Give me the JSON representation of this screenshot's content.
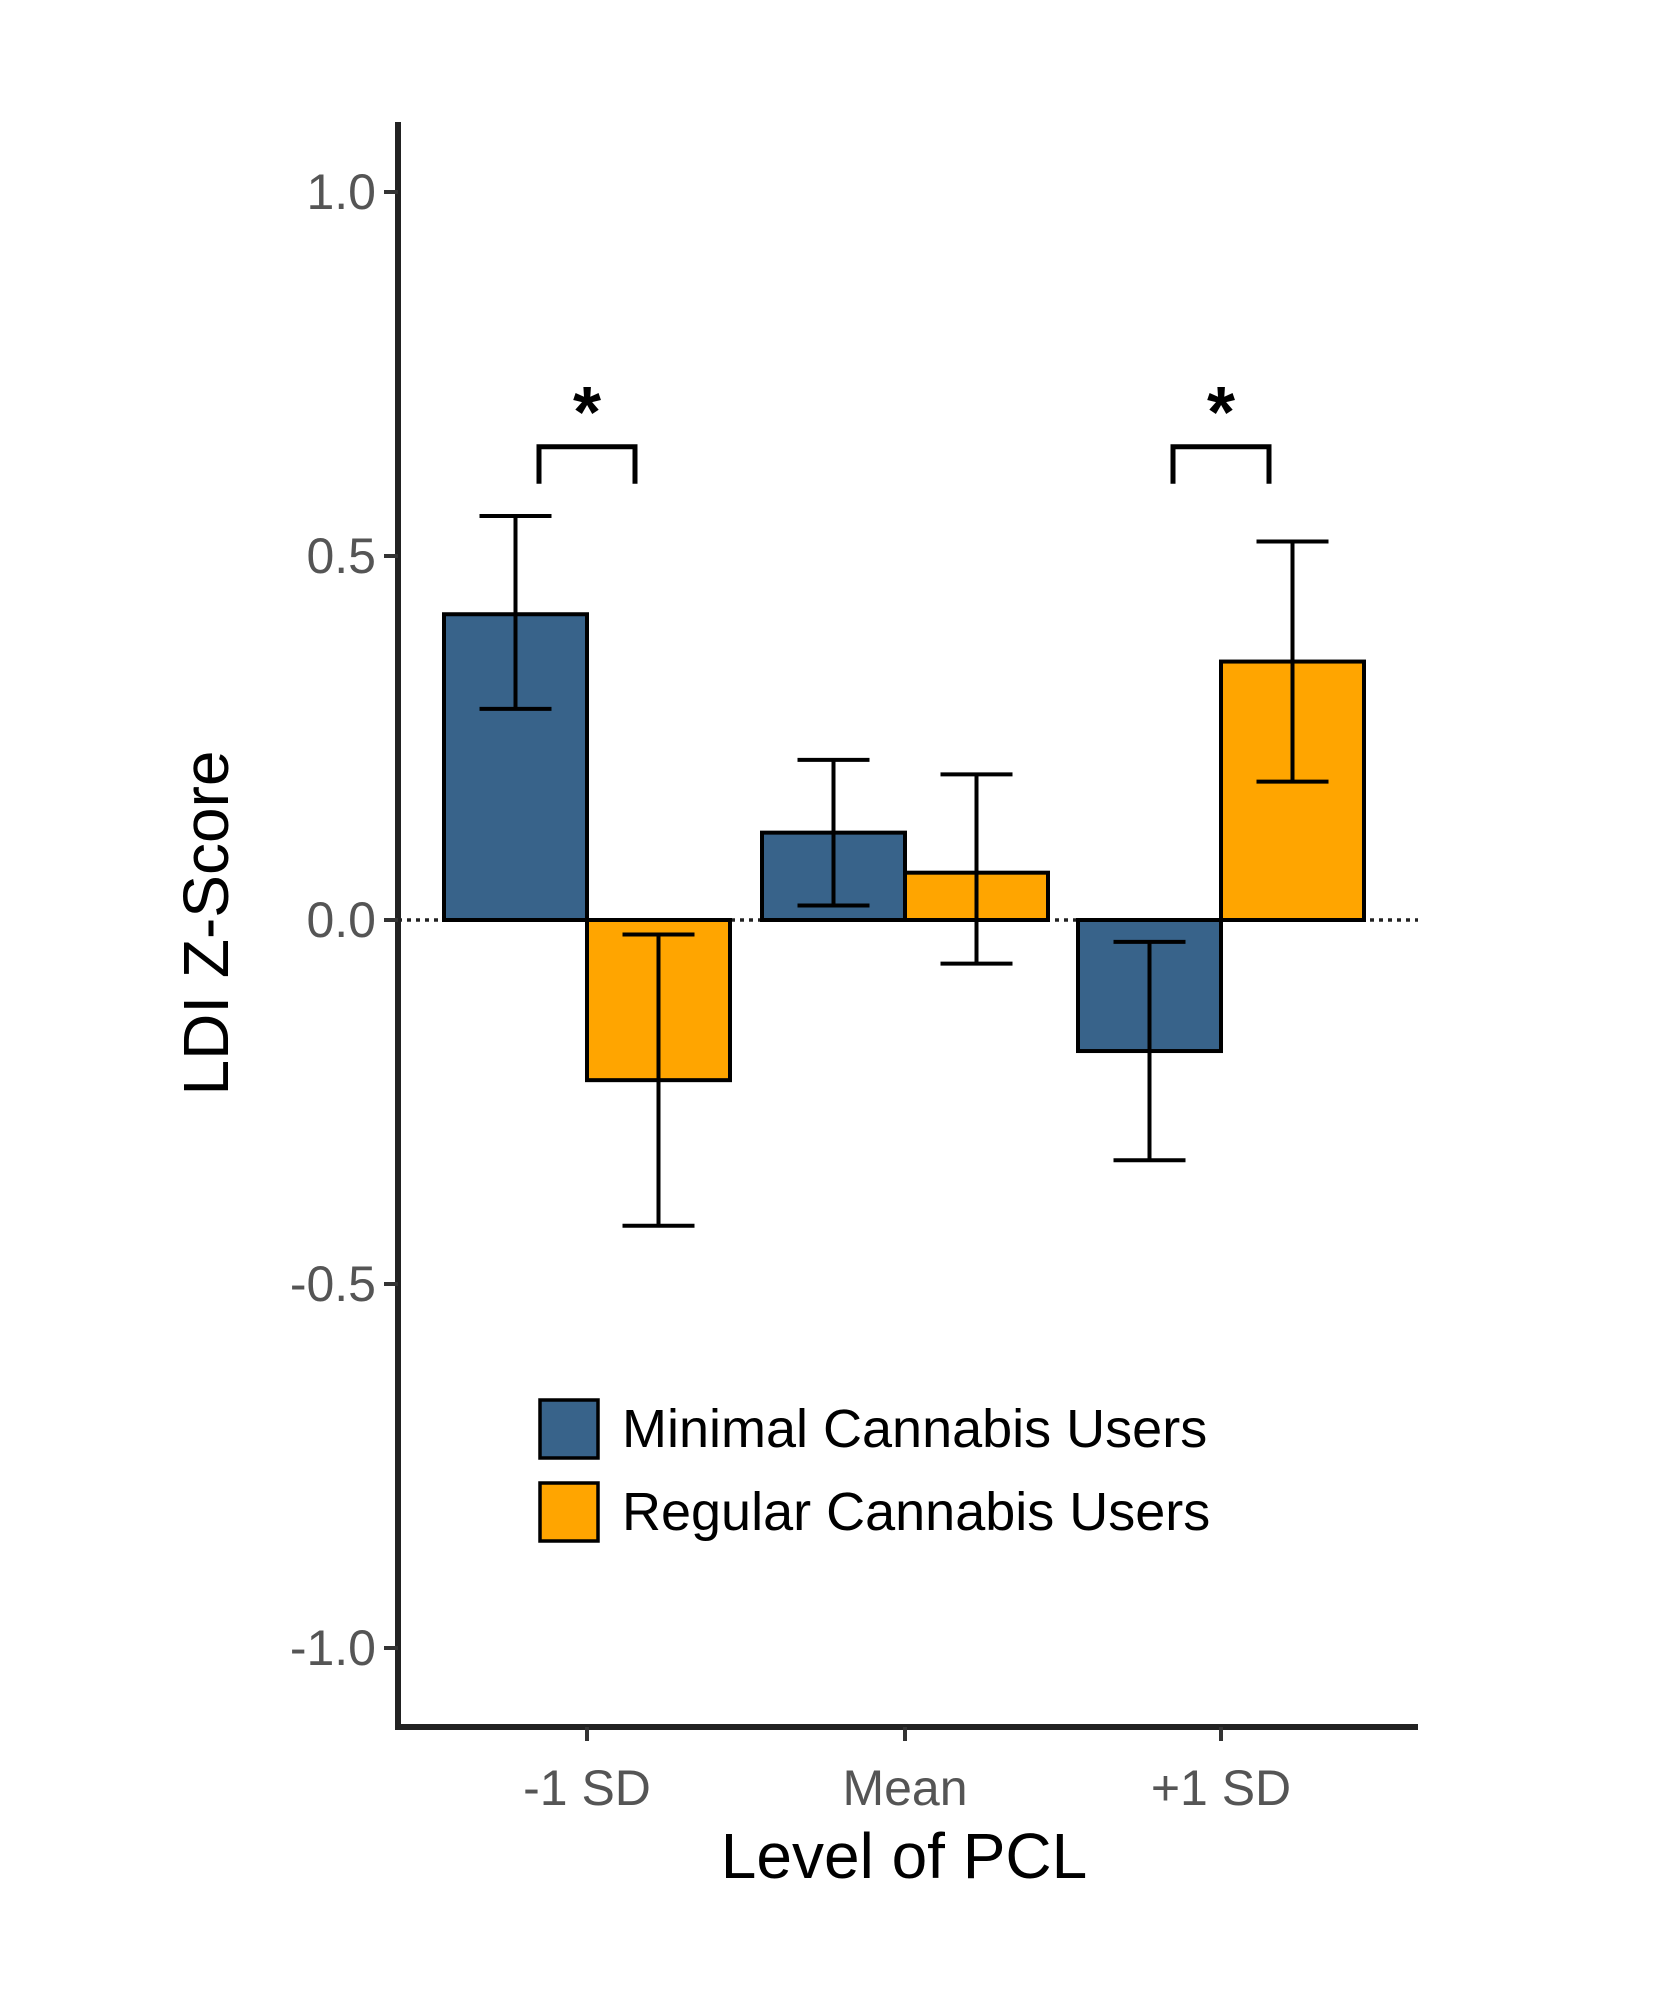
{
  "chart_data": {
    "type": "bar",
    "title": "",
    "xlabel": "Level of PCL",
    "ylabel": "LDI Z-Score",
    "categories": [
      "-1 SD",
      "Mean",
      "+1 SD"
    ],
    "ylim": [
      -1.1,
      1.1
    ],
    "yticks": [
      "1.0",
      "0.5",
      "0.0",
      "-0.5",
      "-1.0"
    ],
    "ytick_values": [
      1.0,
      0.5,
      0.0,
      -0.5,
      -1.0
    ],
    "grid": false,
    "reference_line": 0.0,
    "legend_position": "bottom-center inside plot",
    "series": [
      {
        "name": "Minimal Cannabis Users",
        "color": "#38638A",
        "values": [
          0.42,
          0.12,
          -0.18
        ],
        "error_low": [
          0.29,
          0.02,
          -0.33
        ],
        "error_high": [
          0.555,
          0.22,
          -0.03
        ]
      },
      {
        "name": "Regular Cannabis Users",
        "color": "#FFA500",
        "values": [
          -0.22,
          0.065,
          0.355
        ],
        "error_low": [
          -0.42,
          -0.06,
          0.19
        ],
        "error_high": [
          -0.02,
          0.2,
          0.52
        ]
      }
    ],
    "annotations": [
      {
        "text": "*",
        "category": "-1 SD",
        "bracket_y": 0.65
      },
      {
        "text": "*",
        "category": "+1 SD",
        "bracket_y": 0.65
      }
    ]
  }
}
